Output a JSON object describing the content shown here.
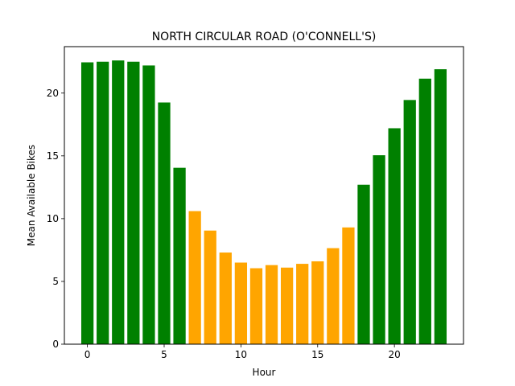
{
  "chart_data": {
    "type": "bar",
    "title": "NORTH CIRCULAR ROAD (O'CONNELL'S)",
    "xlabel": "Hour",
    "ylabel": "Mean Available Bikes",
    "x": [
      0,
      1,
      2,
      3,
      4,
      5,
      6,
      7,
      8,
      9,
      10,
      11,
      12,
      13,
      14,
      15,
      16,
      17,
      18,
      19,
      20,
      21,
      22,
      23
    ],
    "values": [
      22.45,
      22.5,
      22.6,
      22.5,
      22.2,
      19.25,
      14.05,
      10.6,
      9.05,
      7.3,
      6.5,
      6.05,
      6.3,
      6.1,
      6.4,
      6.6,
      7.65,
      9.3,
      12.7,
      15.05,
      17.2,
      19.45,
      21.15,
      21.9
    ],
    "colors": [
      "green",
      "green",
      "green",
      "green",
      "green",
      "green",
      "green",
      "orange",
      "orange",
      "orange",
      "orange",
      "orange",
      "orange",
      "orange",
      "orange",
      "orange",
      "orange",
      "orange",
      "green",
      "green",
      "green",
      "green",
      "green",
      "green"
    ],
    "palette": {
      "green": "#008000",
      "orange": "#ffa500"
    },
    "xlim": [
      -1.5,
      24.5
    ],
    "ylim": [
      0,
      23.7
    ],
    "xticks": [
      0,
      5,
      10,
      15,
      20
    ],
    "yticks": [
      0,
      5,
      10,
      15,
      20
    ],
    "grid": false,
    "legend": "none"
  }
}
